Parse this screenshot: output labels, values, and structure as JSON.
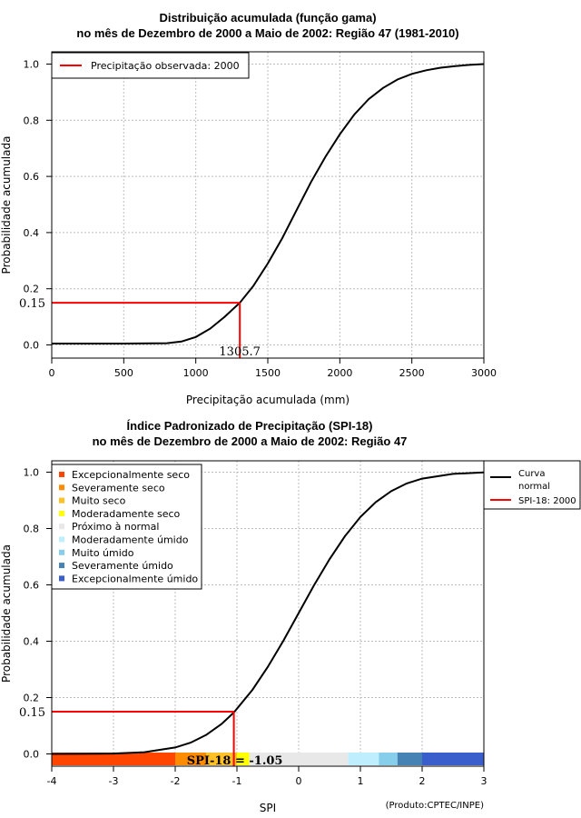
{
  "chart_data": [
    {
      "type": "line",
      "title_line1": "Distribuição acumulada (função gama)",
      "title_line2": "no mês de Dezembro de 2000 a Maio de 2002: Região 47 (1981-2010)",
      "xlabel": "Precipitação acumulada (mm)",
      "ylabel": "Probabilidade acumulada",
      "xlim": [
        0,
        3000
      ],
      "ylim": [
        0,
        1
      ],
      "xticks": [
        0,
        500,
        1000,
        1500,
        2000,
        2500,
        3000
      ],
      "xtick_labels": [
        "0",
        "500",
        "1000",
        "1500",
        "2000",
        "2500",
        "3000"
      ],
      "yticks": [
        0,
        0.2,
        0.4,
        0.6,
        0.8,
        1
      ],
      "ytick_labels": [
        "0.0",
        "0.2",
        "0.4",
        "0.6",
        "0.8",
        "1.0"
      ],
      "grid": true,
      "legend": [
        {
          "label": "Precipitação observada: 2000",
          "color": "#ff0000"
        }
      ],
      "legend_position": "top-left",
      "series": [
        {
          "name": "Distribuição gama",
          "color": "#000000",
          "x": [
            0,
            500,
            800,
            900,
            1000,
            1100,
            1200,
            1305.7,
            1400,
            1500,
            1600,
            1700,
            1800,
            1900,
            2000,
            2100,
            2200,
            2300,
            2400,
            2500,
            2600,
            2700,
            2800,
            2900,
            3000
          ],
          "y": [
            0.005,
            0.005,
            0.006,
            0.012,
            0.028,
            0.058,
            0.1,
            0.15,
            0.21,
            0.29,
            0.38,
            0.48,
            0.58,
            0.67,
            0.75,
            0.82,
            0.875,
            0.915,
            0.945,
            0.965,
            0.978,
            0.987,
            0.993,
            0.997,
            1.0
          ]
        }
      ],
      "marker": {
        "x": 1305.7,
        "y": 0.15,
        "x_label": "1305.7",
        "y_label": "0.15"
      }
    },
    {
      "type": "line",
      "title_line1": "Índice Padronizado de Precipitação (SPI-18)",
      "title_line2": "no mês de Dezembro de 2000 a Maio de 2002: Região 47",
      "xlabel": "SPI",
      "ylabel": "Probabilidade acumulada",
      "xlim": [
        -4,
        3
      ],
      "ylim": [
        0,
        1
      ],
      "xticks": [
        -4,
        -3,
        -2,
        -1,
        0,
        1,
        2,
        3
      ],
      "xtick_labels": [
        "-4",
        "-3",
        "-2",
        "-1",
        "0",
        "1",
        "2",
        "3"
      ],
      "yticks": [
        0,
        0.2,
        0.4,
        0.6,
        0.8,
        1
      ],
      "ytick_labels": [
        "0.0",
        "0.2",
        "0.4",
        "0.6",
        "0.8",
        "1.0"
      ],
      "grid": true,
      "legend_position": "top-right",
      "legend": [
        {
          "label": "Curva",
          "label2": "normal",
          "color": "#000000"
        },
        {
          "label": "SPI-18: 2000",
          "color": "#ff0000"
        }
      ],
      "category_legend_position": "top-left",
      "categories": [
        {
          "label": "Excepcionalmente seco",
          "color": "#ff4500"
        },
        {
          "label": "Severamente seco",
          "color": "#ff8c00"
        },
        {
          "label": "Muito seco",
          "color": "#ffc125"
        },
        {
          "label": "Moderadamente seco",
          "color": "#ffff00"
        },
        {
          "label": "Próximo à normal",
          "color": "#e8e8e8"
        },
        {
          "label": "Moderadamente úmido",
          "color": "#bfefff"
        },
        {
          "label": "Muito úmido",
          "color": "#87ceeb"
        },
        {
          "label": "Severamente úmido",
          "color": "#4682b4"
        },
        {
          "label": "Excepcionalmente úmido",
          "color": "#3a5fcd"
        }
      ],
      "color_bands": [
        {
          "from": -4,
          "to": -2,
          "color": "#ff4500"
        },
        {
          "from": -2,
          "to": -1.5,
          "color": "#ff8c00"
        },
        {
          "from": -1.5,
          "to": -1.0,
          "color": "#ffc125"
        },
        {
          "from": -1.0,
          "to": -0.8,
          "color": "#ffff00"
        },
        {
          "from": -0.8,
          "to": 0.8,
          "color": "#e8e8e8"
        },
        {
          "from": 0.8,
          "to": 1.3,
          "color": "#bfefff"
        },
        {
          "from": 1.3,
          "to": 1.6,
          "color": "#87ceeb"
        },
        {
          "from": 1.6,
          "to": 2.0,
          "color": "#4682b4"
        },
        {
          "from": 2.0,
          "to": 3.0,
          "color": "#3a5fcd"
        }
      ],
      "series": [
        {
          "name": "Curva normal",
          "color": "#000000",
          "x": [
            -4,
            -3.5,
            -3,
            -2.5,
            -2,
            -1.75,
            -1.5,
            -1.25,
            -1.05,
            -0.75,
            -0.5,
            -0.25,
            0,
            0.25,
            0.5,
            0.75,
            1,
            1.25,
            1.5,
            1.75,
            2,
            2.5,
            3
          ],
          "y": [
            0.0,
            0.0002,
            0.0013,
            0.006,
            0.023,
            0.04,
            0.067,
            0.106,
            0.147,
            0.227,
            0.309,
            0.401,
            0.5,
            0.599,
            0.691,
            0.773,
            0.841,
            0.894,
            0.933,
            0.96,
            0.977,
            0.994,
            0.999
          ]
        }
      ],
      "marker": {
        "x": -1.05,
        "y": 0.15,
        "x_label": "SPI-18 = -1.05",
        "y_label": "0.15"
      },
      "credit": "(Produto:CPTEC/INPE)"
    }
  ]
}
